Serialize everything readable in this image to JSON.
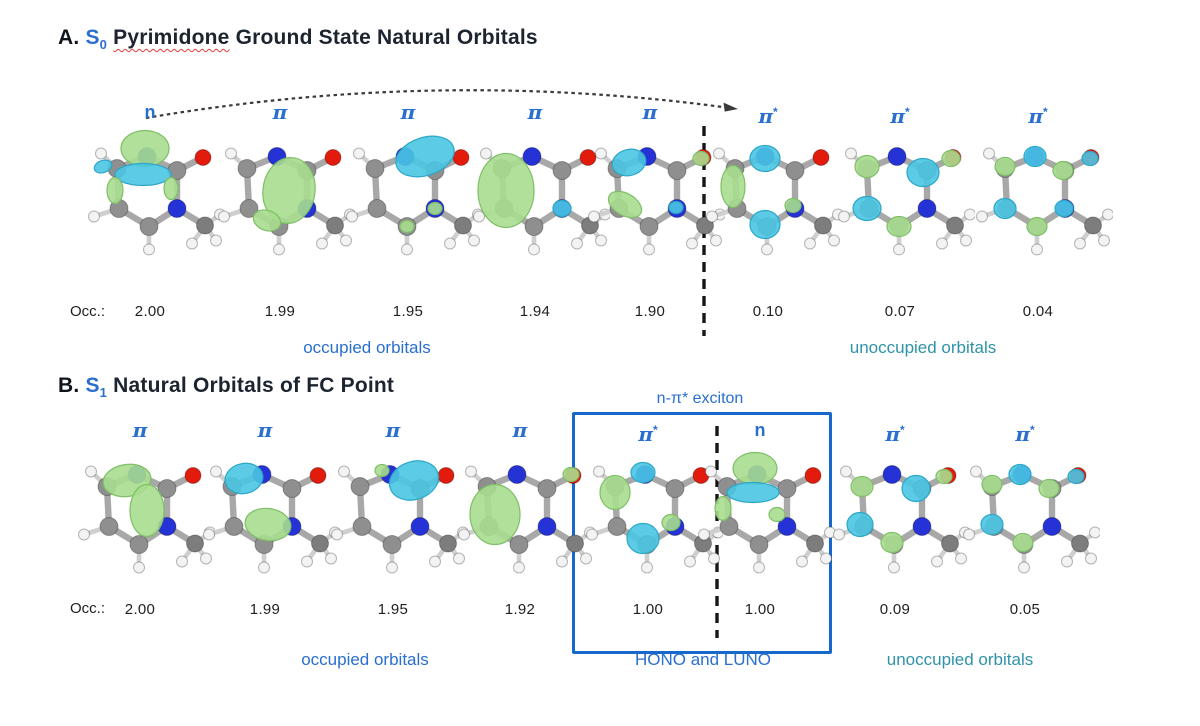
{
  "figure": {
    "colors": {
      "accent_blue": "#2a6fce",
      "teal_caption": "#2f93a8",
      "box_blue": "#1668cc",
      "lobe_green": "#a7dd8f",
      "lobe_cyan": "#4ac5e2",
      "atom_carbon": "#8f8f8f",
      "atom_nitrogen": "#2432d6",
      "atom_oxygen": "#e31b0c",
      "atom_hydrogen": "#f3f3f3"
    },
    "panelA": {
      "label": "A.",
      "state": "S",
      "state_sub": "0",
      "title_word": "Pyrimidone",
      "title_rest": "Ground State Natural Orbitals",
      "occ_prefix": "Occ.:",
      "captions": {
        "occupied": "occupied orbitals",
        "unoccupied": "unoccupied orbitals"
      },
      "orbitals": [
        {
          "label": "n",
          "occ": "2.00",
          "lobes": [
            [
              70,
              20,
              24,
              18,
              0,
              "g"
            ],
            [
              68,
              46,
              28,
              11,
              0,
              "c"
            ],
            [
              28,
              38,
              9,
              6,
              -20,
              "c"
            ],
            [
              40,
              62,
              8,
              13,
              0,
              "g"
            ],
            [
              96,
              60,
              7,
              11,
              0,
              "g"
            ]
          ]
        },
        {
          "label": "π",
          "occ": "1.99",
          "lobes": [
            [
              84,
              62,
              26,
              33,
              8,
              "g"
            ],
            [
              62,
              92,
              14,
              10,
              20,
              "g"
            ]
          ]
        },
        {
          "label": "π",
          "occ": "1.95",
          "lobes": [
            [
              92,
              28,
              30,
              19,
              -18,
              "c"
            ],
            [
              74,
              98,
              7,
              6,
              0,
              "g"
            ],
            [
              102,
              80,
              7,
              6,
              0,
              "g"
            ]
          ]
        },
        {
          "label": "π",
          "occ": "1.94",
          "lobes": [
            [
              46,
              62,
              28,
              37,
              0,
              "g"
            ],
            [
              102,
              80,
              9,
              8,
              0,
              "c"
            ]
          ]
        },
        {
          "label": "π",
          "occ": "1.90",
          "lobes": [
            [
              54,
              34,
              17,
              13,
              -15,
              "c"
            ],
            [
              50,
              76,
              18,
              11,
              30,
              "g"
            ],
            [
              126,
              30,
              8,
              7,
              0,
              "g"
            ],
            [
              101,
              79,
              7,
              6,
              0,
              "c"
            ]
          ]
        },
        {
          "label": "π*",
          "occ": "0.10",
          "lobes": [
            [
              40,
              58,
              12,
              21,
              0,
              "g"
            ],
            [
              72,
              30,
              15,
              13,
              0,
              "c"
            ],
            [
              72,
              96,
              15,
              14,
              0,
              "c"
            ],
            [
              100,
              77,
              8,
              7,
              0,
              "g"
            ]
          ]
        },
        {
          "label": "π*",
          "occ": "0.07",
          "lobes": [
            [
              42,
              38,
              12,
              11,
              0,
              "g"
            ],
            [
              98,
              44,
              16,
              14,
              0,
              "c"
            ],
            [
              126,
              30,
              9,
              8,
              0,
              "g"
            ],
            [
              42,
              80,
              14,
              12,
              0,
              "c"
            ],
            [
              74,
              98,
              12,
              10,
              0,
              "g"
            ]
          ]
        },
        {
          "label": "π*",
          "occ": "0.04",
          "lobes": [
            [
              42,
              38,
              10,
              9,
              0,
              "g"
            ],
            [
              72,
              28,
              11,
              10,
              0,
              "c"
            ],
            [
              100,
              42,
              10,
              9,
              0,
              "g"
            ],
            [
              127,
              30,
              8,
              7,
              0,
              "c"
            ],
            [
              42,
              80,
              11,
              10,
              0,
              "c"
            ],
            [
              74,
              98,
              10,
              9,
              0,
              "g"
            ],
            [
              101,
              80,
              9,
              8,
              0,
              "c"
            ]
          ]
        }
      ]
    },
    "panelB": {
      "label": "B.",
      "state": "S",
      "state_sub": "1",
      "title_rest": "Natural Orbitals of FC Point",
      "occ_prefix": "Occ.:",
      "exciton_label": "n-π* exciton",
      "captions": {
        "occupied": "occupied orbitals",
        "hono_luno": "HONO and LUNO",
        "unoccupied": "unoccupied orbitals"
      },
      "orbitals": [
        {
          "label": "π",
          "occ": "2.00",
          "lobes": [
            [
              62,
              34,
              24,
              16,
              -8,
              "g"
            ],
            [
              82,
              64,
              17,
              26,
              0,
              "g"
            ]
          ]
        },
        {
          "label": "π",
          "occ": "1.99",
          "lobes": [
            [
              54,
              32,
              19,
              15,
              -12,
              "c"
            ],
            [
              78,
              78,
              23,
              16,
              8,
              "g"
            ]
          ]
        },
        {
          "label": "π",
          "occ": "1.95",
          "lobes": [
            [
              96,
              34,
              25,
              19,
              -18,
              "c"
            ],
            [
              64,
              24,
              7,
              6,
              0,
              "g"
            ]
          ]
        },
        {
          "label": "π",
          "occ": "1.92",
          "lobes": [
            [
              50,
              68,
              25,
              30,
              0,
              "g"
            ],
            [
              126,
              28,
              8,
              7,
              0,
              "g"
            ]
          ]
        },
        {
          "label": "π*",
          "occ": "1.00",
          "lobes": [
            [
              42,
              46,
              15,
              17,
              0,
              "g"
            ],
            [
              70,
              26,
              12,
              10,
              0,
              "c"
            ],
            [
              70,
              92,
              16,
              15,
              0,
              "c"
            ],
            [
              98,
              76,
              9,
              8,
              0,
              "g"
            ]
          ]
        },
        {
          "label": "n",
          "occ": "1.00",
          "lobes": [
            [
              70,
              22,
              22,
              16,
              0,
              "g"
            ],
            [
              68,
              46,
              26,
              10,
              0,
              "c"
            ],
            [
              38,
              62,
              8,
              12,
              0,
              "g"
            ],
            [
              92,
              68,
              8,
              7,
              0,
              "g"
            ]
          ]
        },
        {
          "label": "π*",
          "occ": "0.09",
          "lobes": [
            [
              42,
              40,
              11,
              10,
              0,
              "g"
            ],
            [
              96,
              42,
              14,
              13,
              0,
              "c"
            ],
            [
              124,
              30,
              8,
              7,
              0,
              "g"
            ],
            [
              40,
              78,
              13,
              12,
              0,
              "c"
            ],
            [
              72,
              96,
              11,
              10,
              0,
              "g"
            ]
          ]
        },
        {
          "label": "π*",
          "occ": "0.05",
          "lobes": [
            [
              42,
              38,
              10,
              9,
              0,
              "g"
            ],
            [
              70,
              28,
              11,
              10,
              0,
              "c"
            ],
            [
              99,
              42,
              10,
              9,
              0,
              "g"
            ],
            [
              126,
              30,
              8,
              7,
              0,
              "c"
            ],
            [
              42,
              78,
              11,
              10,
              0,
              "c"
            ],
            [
              73,
              96,
              10,
              9,
              0,
              "g"
            ]
          ]
        }
      ]
    }
  }
}
